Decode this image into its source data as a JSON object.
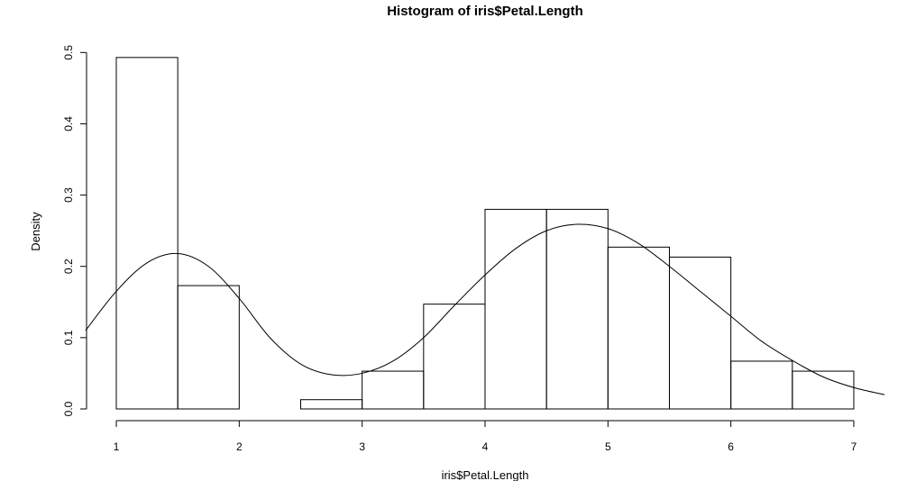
{
  "chart_data": {
    "type": "bar",
    "title": "Histogram of iris$Petal.Length",
    "xlabel": "iris$Petal.Length",
    "ylabel": "Density",
    "bins": [
      {
        "x0": 1.0,
        "x1": 1.5,
        "density": 0.493
      },
      {
        "x0": 1.5,
        "x1": 2.0,
        "density": 0.173
      },
      {
        "x0": 2.0,
        "x1": 2.5,
        "density": 0.0
      },
      {
        "x0": 2.5,
        "x1": 3.0,
        "density": 0.013
      },
      {
        "x0": 3.0,
        "x1": 3.5,
        "density": 0.053
      },
      {
        "x0": 3.5,
        "x1": 4.0,
        "density": 0.147
      },
      {
        "x0": 4.0,
        "x1": 4.5,
        "density": 0.28
      },
      {
        "x0": 4.5,
        "x1": 5.0,
        "density": 0.28
      },
      {
        "x0": 5.0,
        "x1": 5.5,
        "density": 0.227
      },
      {
        "x0": 5.5,
        "x1": 6.0,
        "density": 0.213
      },
      {
        "x0": 6.0,
        "x1": 6.5,
        "density": 0.067
      },
      {
        "x0": 6.5,
        "x1": 7.0,
        "density": 0.053
      }
    ],
    "density_curve": {
      "x": [
        0.75,
        1.0,
        1.25,
        1.5,
        1.75,
        2.0,
        2.25,
        2.5,
        2.75,
        3.0,
        3.25,
        3.5,
        3.75,
        4.0,
        4.25,
        4.5,
        4.75,
        5.0,
        5.25,
        5.5,
        5.75,
        6.0,
        6.25,
        6.5,
        6.75,
        7.0,
        7.25
      ],
      "y": [
        0.11,
        0.165,
        0.205,
        0.218,
        0.2,
        0.155,
        0.1,
        0.063,
        0.048,
        0.05,
        0.067,
        0.1,
        0.145,
        0.188,
        0.225,
        0.25,
        0.259,
        0.253,
        0.232,
        0.2,
        0.165,
        0.13,
        0.095,
        0.068,
        0.045,
        0.03,
        0.02
      ]
    },
    "xlim": [
      0.75,
      7.25
    ],
    "ylim": [
      0,
      0.5
    ],
    "x_ticks": [
      1,
      2,
      3,
      4,
      5,
      6,
      7
    ],
    "y_ticks": [
      "0.0",
      "0.1",
      "0.2",
      "0.3",
      "0.4",
      "0.5"
    ],
    "grid": false
  }
}
